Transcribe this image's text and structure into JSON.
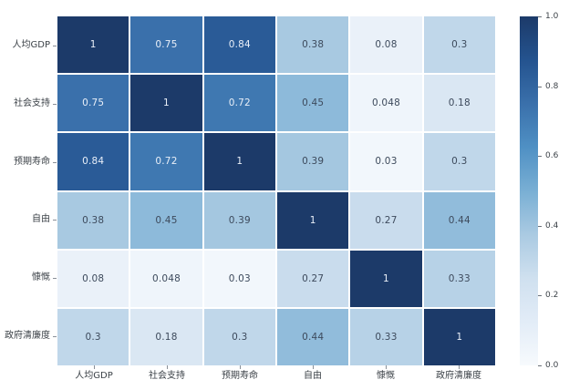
{
  "chart_data": {
    "type": "heatmap",
    "title": "",
    "categories": [
      "人均GDP",
      "社会支持",
      "预期寿命",
      "自由",
      "慷慨",
      "政府清廉度"
    ],
    "matrix": [
      [
        1,
        0.75,
        0.84,
        0.38,
        0.08,
        0.3
      ],
      [
        0.75,
        1,
        0.72,
        0.45,
        0.048,
        0.18
      ],
      [
        0.84,
        0.72,
        1,
        0.39,
        0.03,
        0.3
      ],
      [
        0.38,
        0.45,
        0.39,
        1,
        0.27,
        0.44
      ],
      [
        0.08,
        0.048,
        0.03,
        0.27,
        1,
        0.33
      ],
      [
        0.3,
        0.18,
        0.3,
        0.44,
        0.33,
        1
      ]
    ],
    "value_range": [
      0,
      1
    ],
    "grid": "white gaps between cells",
    "legend_position": "right-colorbar",
    "colormap": {
      "name": "Blues",
      "stops": [
        [
          0.0,
          "#f7fafd"
        ],
        [
          0.125,
          "#e2ecf7"
        ],
        [
          0.25,
          "#cfe0ef"
        ],
        [
          0.375,
          "#aacae2"
        ],
        [
          0.5,
          "#79afd4"
        ],
        [
          0.625,
          "#4f90c4"
        ],
        [
          0.75,
          "#3a70ab"
        ],
        [
          0.875,
          "#24538f"
        ],
        [
          1.0,
          "#1c3a69"
        ]
      ]
    },
    "colorbar": {
      "ticks": [
        "1.0",
        "0.8",
        "0.6",
        "0.4",
        "0.2",
        "0.0"
      ]
    },
    "colors": {
      "cell_text_light": "#e9eff8",
      "cell_text_dark": "#3d4a5c",
      "axis_label": "#3c4248",
      "background": "#ffffff"
    },
    "light_text_threshold": 0.6
  }
}
